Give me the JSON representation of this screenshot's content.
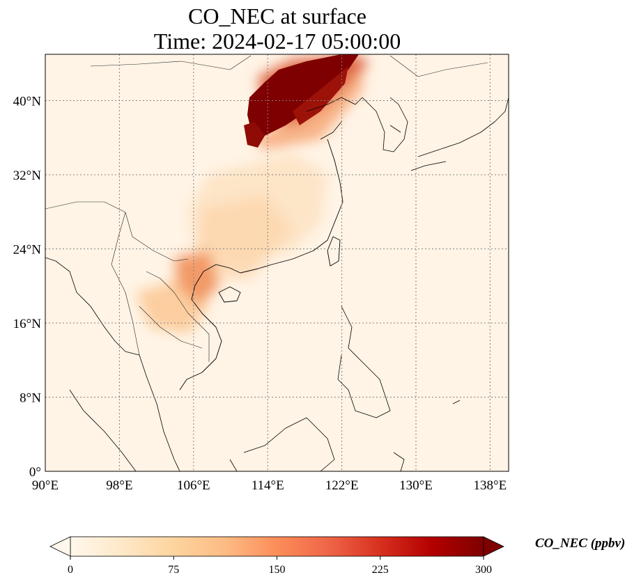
{
  "title": {
    "line1": "CO_NEC at surface",
    "line2": "Time: 2024-02-17 05:00:00"
  },
  "map": {
    "projection": "PlateCarree",
    "lon_range": [
      90,
      140
    ],
    "lat_range": [
      0,
      45
    ],
    "gridlines": true,
    "gridline_style": "dotted",
    "lon_ticks": [
      90,
      98,
      106,
      114,
      122,
      130,
      138
    ],
    "lon_tick_labels": [
      "90°E",
      "98°E",
      "106°E",
      "114°E",
      "122°E",
      "130°E",
      "138°E"
    ],
    "lat_ticks": [
      0,
      8,
      16,
      24,
      32,
      40
    ],
    "lat_tick_labels": [
      "0°",
      "8°N",
      "16°N",
      "24°N",
      "32°N",
      "40°N"
    ],
    "colormap": "OrRd",
    "field_features": [
      {
        "lon": 116.5,
        "lat": 39.5,
        "value": 300
      },
      {
        "lon": 119.0,
        "lat": 42.0,
        "value": 280
      },
      {
        "lon": 114.5,
        "lat": 37.0,
        "value": 260
      },
      {
        "lon": 106.5,
        "lat": 22.0,
        "value": 140
      },
      {
        "lon": 104.0,
        "lat": 18.0,
        "value": 95
      },
      {
        "lon": 111.0,
        "lat": 29.0,
        "value": 70
      },
      {
        "lon": 113.0,
        "lat": 33.0,
        "value": 60
      }
    ]
  },
  "colorbar": {
    "min": 0,
    "max": 300,
    "extend": "both",
    "ticks": [
      0,
      75,
      150,
      225,
      300
    ],
    "tick_labels": [
      "0",
      "75",
      "150",
      "225",
      "300"
    ],
    "label": "CO_NEC (ppbv)",
    "colors": [
      "#fff7ec",
      "#fee8c8",
      "#fdd49e",
      "#fdbb84",
      "#fc8d59",
      "#ef6548",
      "#d7301f",
      "#b30000",
      "#7f0000"
    ]
  },
  "colors": {
    "coastline": "#000000",
    "border": "#222222",
    "grid": "#808080"
  }
}
